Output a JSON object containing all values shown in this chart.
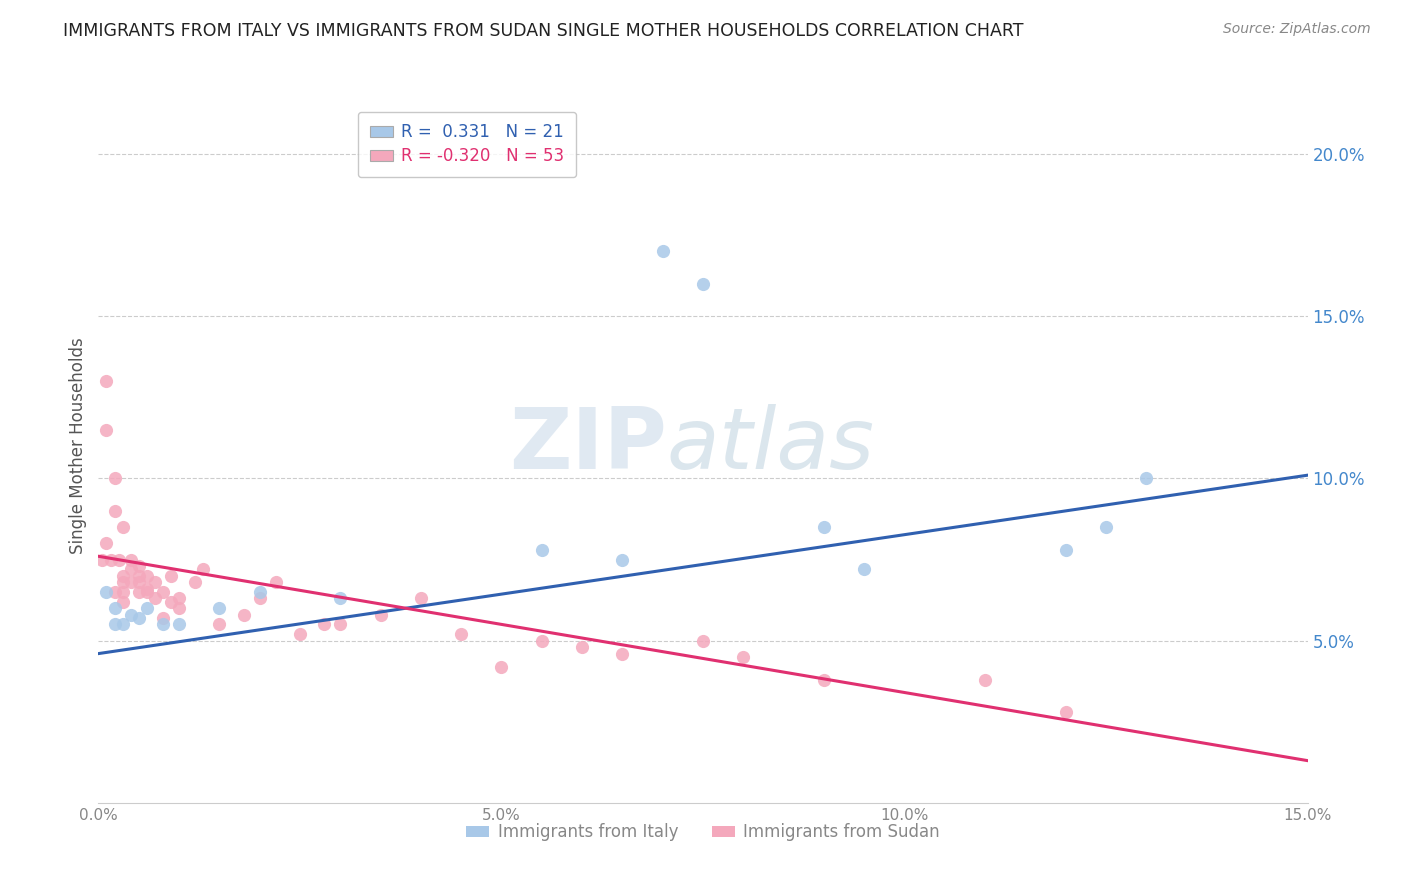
{
  "title": "IMMIGRANTS FROM ITALY VS IMMIGRANTS FROM SUDAN SINGLE MOTHER HOUSEHOLDS CORRELATION CHART",
  "source": "Source: ZipAtlas.com",
  "ylabel": "Single Mother Households",
  "xlabel_italy": "Immigrants from Italy",
  "xlabel_sudan": "Immigrants from Sudan",
  "watermark_zip": "ZIP",
  "watermark_atlas": "atlas",
  "italy_R": 0.331,
  "italy_N": 21,
  "sudan_R": -0.32,
  "sudan_N": 53,
  "italy_color": "#a8c8e8",
  "sudan_color": "#f4a8bc",
  "italy_line_color": "#3060b0",
  "sudan_line_color": "#e03070",
  "xlim": [
    0.0,
    0.15
  ],
  "ylim": [
    0.0,
    0.22
  ],
  "italy_x": [
    0.001,
    0.002,
    0.002,
    0.003,
    0.004,
    0.005,
    0.006,
    0.008,
    0.01,
    0.015,
    0.02,
    0.03,
    0.055,
    0.065,
    0.07,
    0.075,
    0.09,
    0.095,
    0.12,
    0.13,
    0.125
  ],
  "italy_y": [
    0.065,
    0.06,
    0.055,
    0.055,
    0.058,
    0.057,
    0.06,
    0.055,
    0.055,
    0.06,
    0.065,
    0.063,
    0.078,
    0.075,
    0.17,
    0.16,
    0.085,
    0.072,
    0.078,
    0.1,
    0.085
  ],
  "sudan_x": [
    0.0005,
    0.001,
    0.001,
    0.001,
    0.0015,
    0.002,
    0.002,
    0.002,
    0.0025,
    0.003,
    0.003,
    0.003,
    0.003,
    0.003,
    0.004,
    0.004,
    0.004,
    0.005,
    0.005,
    0.005,
    0.005,
    0.006,
    0.006,
    0.006,
    0.007,
    0.007,
    0.008,
    0.008,
    0.009,
    0.009,
    0.01,
    0.01,
    0.012,
    0.013,
    0.015,
    0.018,
    0.02,
    0.022,
    0.025,
    0.028,
    0.03,
    0.035,
    0.04,
    0.045,
    0.05,
    0.055,
    0.06,
    0.065,
    0.075,
    0.08,
    0.09,
    0.11,
    0.12
  ],
  "sudan_y": [
    0.075,
    0.13,
    0.115,
    0.08,
    0.075,
    0.09,
    0.1,
    0.065,
    0.075,
    0.085,
    0.068,
    0.062,
    0.07,
    0.065,
    0.072,
    0.068,
    0.075,
    0.073,
    0.065,
    0.07,
    0.068,
    0.065,
    0.07,
    0.066,
    0.068,
    0.063,
    0.065,
    0.057,
    0.07,
    0.062,
    0.06,
    0.063,
    0.068,
    0.072,
    0.055,
    0.058,
    0.063,
    0.068,
    0.052,
    0.055,
    0.055,
    0.058,
    0.063,
    0.052,
    0.042,
    0.05,
    0.048,
    0.046,
    0.05,
    0.045,
    0.038,
    0.038,
    0.028
  ],
  "italy_line_x0": 0.0,
  "italy_line_y0": 0.046,
  "italy_line_x1": 0.15,
  "italy_line_y1": 0.101,
  "sudan_line_x0": 0.0,
  "sudan_line_y0": 0.076,
  "sudan_line_x1": 0.15,
  "sudan_line_y1": 0.013,
  "grid_color": "#cccccc",
  "bg_color": "#ffffff",
  "right_axis_color": "#4488cc",
  "xtick_labels": [
    "0.0%",
    "5.0%",
    "10.0%",
    "15.0%"
  ],
  "xtick_vals": [
    0.0,
    0.05,
    0.1,
    0.15
  ],
  "ytick_labels_right": [
    "5.0%",
    "10.0%",
    "15.0%",
    "20.0%"
  ],
  "ytick_vals": [
    0.05,
    0.1,
    0.15,
    0.2
  ]
}
